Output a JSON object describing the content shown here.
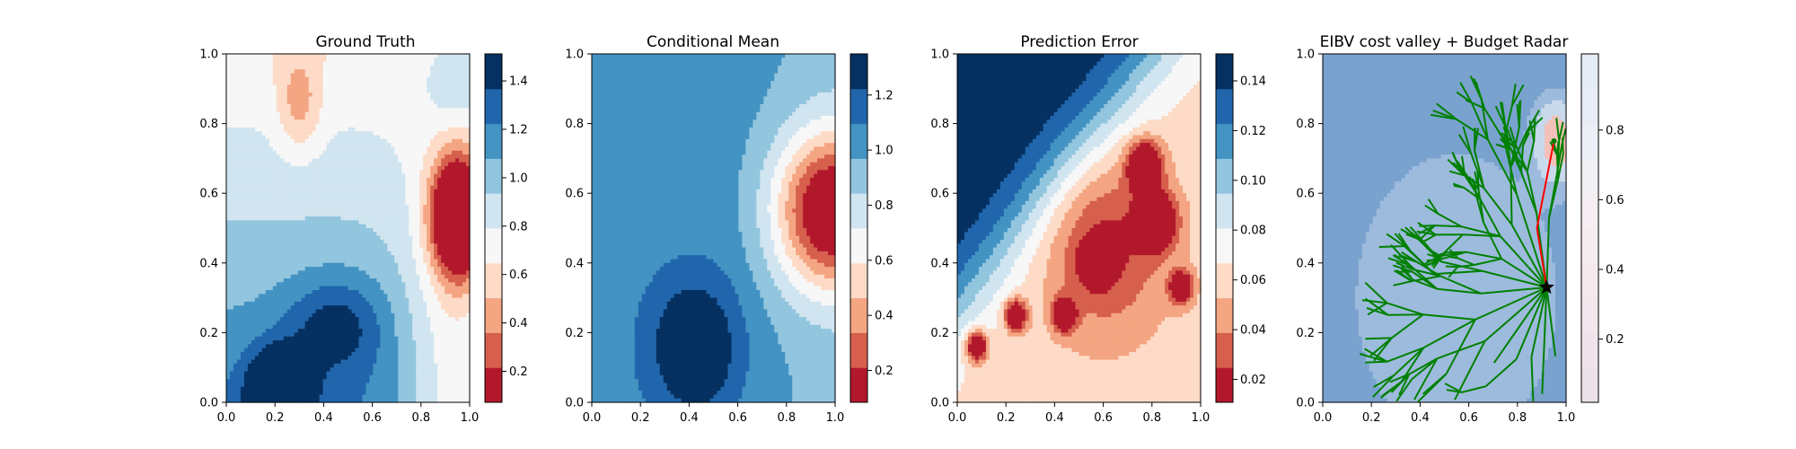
{
  "figure": {
    "panels": [
      {
        "title": "Ground Truth",
        "x_ticks": [
          "0.0",
          "0.2",
          "0.4",
          "0.6",
          "0.8",
          "1.0"
        ],
        "y_ticks": [
          "0.0",
          "0.2",
          "0.4",
          "0.6",
          "0.8",
          "1.0"
        ],
        "colorbar_ticks": [
          "0.2",
          "0.4",
          "0.6",
          "0.8",
          "1.0",
          "1.2",
          "1.4"
        ]
      },
      {
        "title": "Conditional Mean",
        "x_ticks": [
          "0.0",
          "0.2",
          "0.4",
          "0.6",
          "0.8",
          "1.0"
        ],
        "y_ticks": [
          "0.0",
          "0.2",
          "0.4",
          "0.6",
          "0.8",
          "1.0"
        ],
        "colorbar_ticks": [
          "0.2",
          "0.4",
          "0.6",
          "0.8",
          "1.0",
          "1.2"
        ]
      },
      {
        "title": "Prediction Error",
        "x_ticks": [
          "0.0",
          "0.2",
          "0.4",
          "0.6",
          "0.8",
          "1.0"
        ],
        "y_ticks": [
          "0.0",
          "0.2",
          "0.4",
          "0.6",
          "0.8",
          "1.0"
        ],
        "colorbar_ticks": [
          "0.02",
          "0.04",
          "0.06",
          "0.08",
          "0.10",
          "0.12",
          "0.14"
        ]
      },
      {
        "title": "EIBV cost valley + Budget Radar",
        "x_ticks": [
          "0.0",
          "0.2",
          "0.4",
          "0.6",
          "0.8",
          "1.0"
        ],
        "y_ticks": [
          "0.0",
          "0.2",
          "0.4",
          "0.6",
          "0.8",
          "1.0"
        ],
        "colorbar_ticks": [
          "0.2",
          "0.4",
          "0.6",
          "0.8"
        ]
      }
    ]
  },
  "chart_data": [
    {
      "type": "heatmap",
      "title": "Ground Truth",
      "xlim": [
        0,
        1
      ],
      "ylim": [
        0,
        1
      ],
      "colormap": "RdBu",
      "colorbar_range": [
        0.06,
        1.5
      ],
      "levels": 10,
      "field_features": [
        {
          "x": 0.95,
          "y": 0.53,
          "value": 0.05,
          "radius": 0.13
        },
        {
          "x": 0.22,
          "y": 0.04,
          "value": 1.5,
          "radius": 0.16
        },
        {
          "x": 0.45,
          "y": 0.22,
          "value": 1.35,
          "radius": 0.22
        },
        {
          "x": 0.3,
          "y": 0.85,
          "value": 0.65,
          "radius": 0.14
        },
        {
          "x": 0.95,
          "y": 0.92,
          "value": 0.95,
          "radius": 0.2
        }
      ]
    },
    {
      "type": "heatmap",
      "title": "Conditional Mean",
      "xlim": [
        0,
        1
      ],
      "ylim": [
        0,
        1
      ],
      "colormap": "RdBu",
      "colorbar_range": [
        0.08,
        1.35
      ],
      "levels": 10,
      "field_features": [
        {
          "x": 0.97,
          "y": 0.54,
          "value": 0.08,
          "radius": 0.16
        },
        {
          "x": 0.42,
          "y": 0.16,
          "value": 1.35,
          "radius": 0.22
        }
      ]
    },
    {
      "type": "heatmap",
      "title": "Prediction Error",
      "xlim": [
        0,
        1
      ],
      "ylim": [
        0,
        1
      ],
      "colormap": "RdBu",
      "colorbar_range": [
        0.01,
        0.15
      ],
      "levels": 10,
      "field_features": [
        {
          "x": 0.08,
          "y": 0.16,
          "value": 0.01,
          "radius": 0.05
        },
        {
          "x": 0.24,
          "y": 0.25,
          "value": 0.015,
          "radius": 0.05
        },
        {
          "x": 0.44,
          "y": 0.25,
          "value": 0.015,
          "radius": 0.05
        },
        {
          "x": 0.57,
          "y": 0.4,
          "value": 0.01,
          "radius": 0.05
        },
        {
          "x": 0.77,
          "y": 0.68,
          "value": 0.01,
          "radius": 0.07
        },
        {
          "x": 0.82,
          "y": 0.52,
          "value": 0.01,
          "radius": 0.09
        },
        {
          "x": 0.92,
          "y": 0.33,
          "value": 0.015,
          "radius": 0.05
        }
      ]
    },
    {
      "type": "heatmap",
      "title": "EIBV cost valley + Budget Radar",
      "xlim": [
        0,
        1
      ],
      "ylim": [
        0,
        1
      ],
      "colormap": "RdBu",
      "colorbar_range": [
        0,
        1
      ],
      "overlays": {
        "tree_color": "#008000",
        "path_color": "#ff0000",
        "path": [
          [
            0.92,
            0.33
          ],
          [
            0.88,
            0.5
          ],
          [
            0.95,
            0.75
          ]
        ],
        "current_location": [
          0.92,
          0.33
        ],
        "target": [
          0.95,
          0.75
        ]
      }
    }
  ]
}
